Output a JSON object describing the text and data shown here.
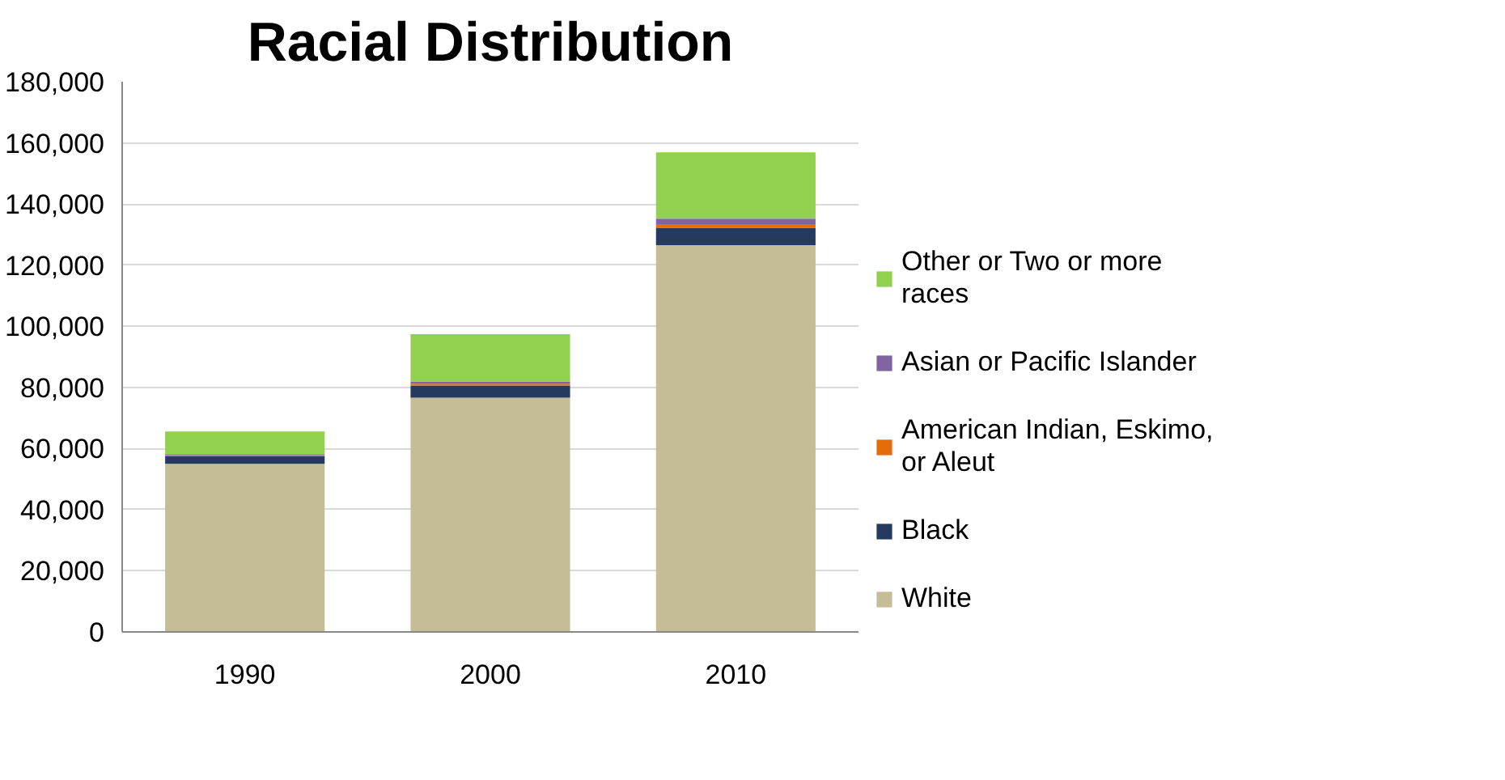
{
  "chart_data": {
    "type": "bar",
    "title": "Racial Distribution",
    "stacked": true,
    "categories": [
      "1990",
      "2000",
      "2010"
    ],
    "series": [
      {
        "name": "White",
        "color": "#c4bd97",
        "values": [
          55000,
          76600,
          126500
        ]
      },
      {
        "name": "Black",
        "color": "#243a5e",
        "values": [
          2500,
          4000,
          5700
        ]
      },
      {
        "name": "American Indian, Eskimo, or Aleut",
        "color": "#e46c0a",
        "values": [
          300,
          600,
          1200
        ]
      },
      {
        "name": "Asian or Pacific Islander",
        "color": "#8064a2",
        "values": [
          400,
          700,
          1800
        ]
      },
      {
        "name": "Other or Two or more races",
        "color": "#92d050",
        "values": [
          7400,
          15500,
          21700
        ]
      }
    ],
    "ylim": [
      0,
      180000
    ],
    "yticks": [
      {
        "value": 0,
        "label": "0"
      },
      {
        "value": 20000,
        "label": "20,000"
      },
      {
        "value": 40000,
        "label": "40,000"
      },
      {
        "value": 60000,
        "label": "60,000"
      },
      {
        "value": 80000,
        "label": "80,000"
      },
      {
        "value": 100000,
        "label": "100,000"
      },
      {
        "value": 120000,
        "label": "120,000"
      },
      {
        "value": 140000,
        "label": "140,000"
      },
      {
        "value": 160000,
        "label": "160,000"
      },
      {
        "value": 180000,
        "label": "180,000"
      }
    ],
    "grid": "y",
    "legend": "right"
  }
}
